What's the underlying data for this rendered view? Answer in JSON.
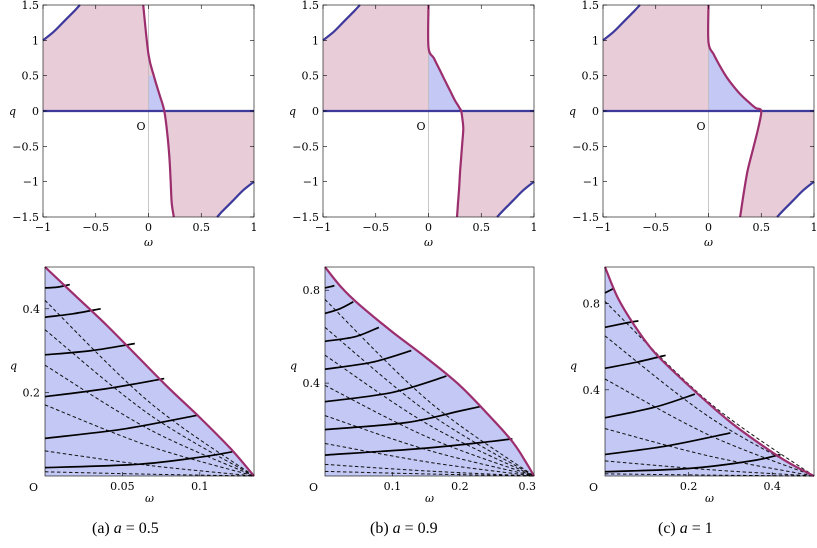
{
  "colors": {
    "region_pink": "#e8cdd9",
    "region_blue": "#c3c8f4",
    "curve_magenta": "#9c2e6e",
    "curve_blue": "#3d3a9c",
    "axis_line": "#000000",
    "grid_line": "#bbbbbb"
  },
  "panels": [
    {
      "caption": {
        "prefix": "(a)",
        "var": "a",
        "rel": "= 0.5"
      },
      "top": {
        "origin_label": "O",
        "xlabel": "ω",
        "ylabel": "q",
        "xticks": [
          "−1",
          "−0.5",
          "0",
          "0.5",
          "1"
        ],
        "yticks": [
          "1.5",
          "1",
          "0.5",
          "0",
          "−0.5",
          "−1",
          "−1.5"
        ]
      },
      "bottom": {
        "origin_label": "O",
        "xlabel": "ω",
        "ylabel": "q",
        "xticks": [
          "0.05",
          "0.1"
        ],
        "yticks": [
          "0.2",
          "0.4"
        ]
      }
    },
    {
      "caption": {
        "prefix": "(b)",
        "var": "a",
        "rel": "= 0.9"
      },
      "top": {
        "origin_label": "O",
        "xlabel": "ω",
        "ylabel": "q",
        "xticks": [
          "−1",
          "−0.5",
          "0",
          "0.5",
          "1"
        ],
        "yticks": [
          "1.5",
          "1",
          "0.5",
          "0",
          "−0.5",
          "−1",
          "−1.5"
        ]
      },
      "bottom": {
        "origin_label": "O",
        "xlabel": "ω",
        "ylabel": "q",
        "xticks": [
          "0.1",
          "0.2",
          "0.3"
        ],
        "yticks": [
          "0.4",
          "0.8"
        ]
      }
    },
    {
      "caption": {
        "prefix": "(c)",
        "var": "a",
        "rel": "= 1"
      },
      "top": {
        "origin_label": "O",
        "xlabel": "ω",
        "ylabel": "q",
        "xticks": [
          "−1",
          "−0.5",
          "0",
          "0.5",
          "1"
        ],
        "yticks": [
          "1.5",
          "1",
          "0.5",
          "0",
          "−0.5",
          "−1",
          "−1.5"
        ]
      },
      "bottom": {
        "origin_label": "O",
        "xlabel": "ω",
        "ylabel": "q",
        "xticks": [
          "0.2",
          "0.4"
        ],
        "yticks": [
          "0.4",
          "0.8"
        ]
      }
    }
  ],
  "chart_data": [
    {
      "type": "area",
      "panel": "(a) a = 0.5, top",
      "xlim": [
        -1,
        1
      ],
      "ylim": [
        -1.5,
        1.5
      ],
      "x_ticks": [
        -1,
        -0.5,
        0,
        0.5,
        1
      ],
      "y_ticks": [
        -1.5,
        -1,
        -0.5,
        0,
        0.5,
        1,
        1.5
      ],
      "boundary_magenta": {
        "x": [
          -0.05,
          0.0,
          0.05,
          0.1,
          0.15,
          0.18,
          0.2,
          0.21,
          0.22,
          0.24
        ],
        "y": [
          1.5,
          0.8,
          0.5,
          0.25,
          0.0,
          -0.35,
          -0.7,
          -1.0,
          -1.3,
          -1.5
        ]
      },
      "boundary_blue_upper": {
        "x": [
          -1.0,
          -0.9,
          -0.8,
          -0.7,
          -0.65
        ],
        "y": [
          1.0,
          1.12,
          1.27,
          1.42,
          1.5
        ]
      },
      "boundary_blue_lower": {
        "x": [
          0.65,
          0.7,
          0.8,
          0.9,
          1.0
        ],
        "y": [
          -1.5,
          -1.42,
          -1.27,
          -1.12,
          -1.0
        ]
      },
      "blue_region": {
        "omega_max": 0.14,
        "q_max": 0.5
      }
    },
    {
      "type": "area",
      "panel": "(b) a = 0.9, top",
      "xlim": [
        -1,
        1
      ],
      "ylim": [
        -1.5,
        1.5
      ],
      "x_ticks": [
        -1,
        -0.5,
        0,
        0.5,
        1
      ],
      "y_ticks": [
        -1.5,
        -1,
        -0.5,
        0,
        0.5,
        1,
        1.5
      ],
      "boundary_magenta": {
        "x": [
          0.0,
          0.0,
          0.05,
          0.1,
          0.15,
          0.2,
          0.25,
          0.28,
          0.3,
          0.31,
          0.32,
          0.33,
          0.32,
          0.31,
          0.3,
          0.29,
          0.28,
          0.27
        ],
        "y": [
          1.5,
          0.9,
          0.75,
          0.6,
          0.45,
          0.3,
          0.15,
          0.08,
          0.03,
          0.0,
          -0.1,
          -0.25,
          -0.45,
          -0.65,
          -0.85,
          -1.1,
          -1.3,
          -1.5
        ]
      },
      "boundary_blue_upper": {
        "x": [
          -1.0,
          -0.9,
          -0.8,
          -0.7,
          -0.65
        ],
        "y": [
          1.0,
          1.12,
          1.27,
          1.42,
          1.5
        ]
      },
      "boundary_blue_lower": {
        "x": [
          0.65,
          0.7,
          0.8,
          0.9,
          1.0
        ],
        "y": [
          -1.5,
          -1.42,
          -1.27,
          -1.12,
          -1.0
        ]
      },
      "blue_region": {
        "omega_max": 0.31,
        "q_max": 0.88
      }
    },
    {
      "type": "area",
      "panel": "(c) a = 1, top",
      "xlim": [
        -1,
        1
      ],
      "ylim": [
        -1.5,
        1.5
      ],
      "x_ticks": [
        -1,
        -0.5,
        0,
        0.5,
        1
      ],
      "y_ticks": [
        -1.5,
        -1,
        -0.5,
        0,
        0.5,
        1,
        1.5
      ],
      "boundary_magenta": {
        "x": [
          0.0,
          0.0,
          0.05,
          0.1,
          0.15,
          0.2,
          0.3,
          0.4,
          0.45,
          0.5,
          0.47,
          0.42,
          0.37,
          0.33,
          0.3
        ],
        "y": [
          1.5,
          0.97,
          0.8,
          0.66,
          0.53,
          0.42,
          0.24,
          0.1,
          0.04,
          0.0,
          -0.25,
          -0.55,
          -0.85,
          -1.2,
          -1.5
        ]
      },
      "boundary_blue_upper": {
        "x": [
          -1.0,
          -0.9,
          -0.8,
          -0.7,
          -0.65
        ],
        "y": [
          1.0,
          1.12,
          1.27,
          1.42,
          1.5
        ]
      },
      "boundary_blue_lower": {
        "x": [
          0.65,
          0.7,
          0.8,
          0.9,
          1.0
        ],
        "y": [
          -1.5,
          -1.42,
          -1.27,
          -1.12,
          -1.0
        ]
      },
      "blue_region": {
        "omega_max": 0.5,
        "q_max": 0.97
      }
    },
    {
      "type": "line",
      "panel": "(a) a = 0.5, bottom",
      "xlim": [
        0,
        0.135
      ],
      "ylim": [
        0,
        0.5
      ],
      "x_ticks": [
        0.05,
        0.1
      ],
      "y_ticks": [
        0.2,
        0.4
      ],
      "boundary": {
        "x": [
          0,
          0.02,
          0.04,
          0.06,
          0.08,
          0.1,
          0.12,
          0.135
        ],
        "y": [
          0.5,
          0.43,
          0.36,
          0.285,
          0.21,
          0.14,
          0.065,
          0.0
        ]
      },
      "solid_curves": [
        {
          "x": [
            0,
            0.008,
            0.016
          ],
          "y": [
            0.45,
            0.452,
            0.458
          ]
        },
        {
          "x": [
            0,
            0.018,
            0.036
          ],
          "y": [
            0.38,
            0.388,
            0.4
          ]
        },
        {
          "x": [
            0,
            0.03,
            0.058
          ],
          "y": [
            0.29,
            0.3,
            0.317
          ]
        },
        {
          "x": [
            0,
            0.04,
            0.077
          ],
          "y": [
            0.19,
            0.209,
            0.233
          ]
        },
        {
          "x": [
            0,
            0.05,
            0.098
          ],
          "y": [
            0.09,
            0.112,
            0.145
          ]
        },
        {
          "x": [
            0,
            0.06,
            0.1,
            0.121
          ],
          "y": [
            0.02,
            0.028,
            0.045,
            0.058
          ]
        }
      ],
      "dashed_rays_start_y": [
        0.42,
        0.35,
        0.265,
        0.17,
        0.06,
        0.01
      ]
    },
    {
      "type": "line",
      "panel": "(b) a = 0.9, bottom",
      "xlim": [
        0,
        0.31
      ],
      "ylim": [
        0,
        0.9
      ],
      "x_ticks": [
        0.1,
        0.2,
        0.3
      ],
      "y_ticks": [
        0.4,
        0.8
      ],
      "boundary": {
        "x": [
          0,
          0.025,
          0.05,
          0.1,
          0.15,
          0.2,
          0.25,
          0.28,
          0.3,
          0.31
        ],
        "y": [
          0.9,
          0.81,
          0.74,
          0.62,
          0.51,
          0.39,
          0.24,
          0.14,
          0.05,
          0.0
        ]
      },
      "solid_curves": [
        {
          "x": [
            0,
            0.008,
            0.014
          ],
          "y": [
            0.81,
            0.815,
            0.82
          ]
        },
        {
          "x": [
            0,
            0.022,
            0.042
          ],
          "y": [
            0.7,
            0.72,
            0.75
          ]
        },
        {
          "x": [
            0,
            0.045,
            0.08
          ],
          "y": [
            0.58,
            0.6,
            0.64
          ]
        },
        {
          "x": [
            0,
            0.07,
            0.128
          ],
          "y": [
            0.46,
            0.49,
            0.54
          ]
        },
        {
          "x": [
            0,
            0.1,
            0.18
          ],
          "y": [
            0.32,
            0.36,
            0.43
          ]
        },
        {
          "x": [
            0,
            0.12,
            0.2,
            0.232
          ],
          "y": [
            0.2,
            0.23,
            0.28,
            0.3
          ]
        },
        {
          "x": [
            0,
            0.15,
            0.25,
            0.278
          ],
          "y": [
            0.09,
            0.12,
            0.15,
            0.16
          ]
        }
      ],
      "dashed_rays_start_y": [
        0.76,
        0.64,
        0.52,
        0.39,
        0.26,
        0.14,
        0.05,
        0.02
      ]
    },
    {
      "type": "line",
      "panel": "(c) a = 1, bottom",
      "xlim": [
        0,
        0.5
      ],
      "ylim": [
        0,
        0.97
      ],
      "x_ticks": [
        0.2,
        0.4
      ],
      "y_ticks": [
        0.4,
        0.8
      ],
      "boundary": {
        "x": [
          0,
          0.03,
          0.07,
          0.12,
          0.2,
          0.3,
          0.4,
          0.45,
          0.5
        ],
        "y": [
          0.97,
          0.83,
          0.7,
          0.57,
          0.42,
          0.25,
          0.11,
          0.05,
          0.0
        ]
      },
      "solid_curves": [
        {
          "x": [
            0,
            0.01,
            0.02
          ],
          "y": [
            0.85,
            0.86,
            0.87
          ]
        },
        {
          "x": [
            0,
            0.05,
            0.08
          ],
          "y": [
            0.69,
            0.71,
            0.72
          ]
        },
        {
          "x": [
            0,
            0.08,
            0.145
          ],
          "y": [
            0.5,
            0.53,
            0.56
          ]
        },
        {
          "x": [
            0,
            0.12,
            0.215
          ],
          "y": [
            0.27,
            0.32,
            0.38
          ]
        },
        {
          "x": [
            0,
            0.15,
            0.3
          ],
          "y": [
            0.1,
            0.14,
            0.2
          ]
        },
        {
          "x": [
            0,
            0.2,
            0.35,
            0.42
          ],
          "y": [
            0.02,
            0.035,
            0.07,
            0.1
          ]
        }
      ],
      "dashed_rays_start_y": [
        0.81,
        0.65,
        0.45,
        0.22,
        0.07,
        0.01
      ]
    }
  ]
}
